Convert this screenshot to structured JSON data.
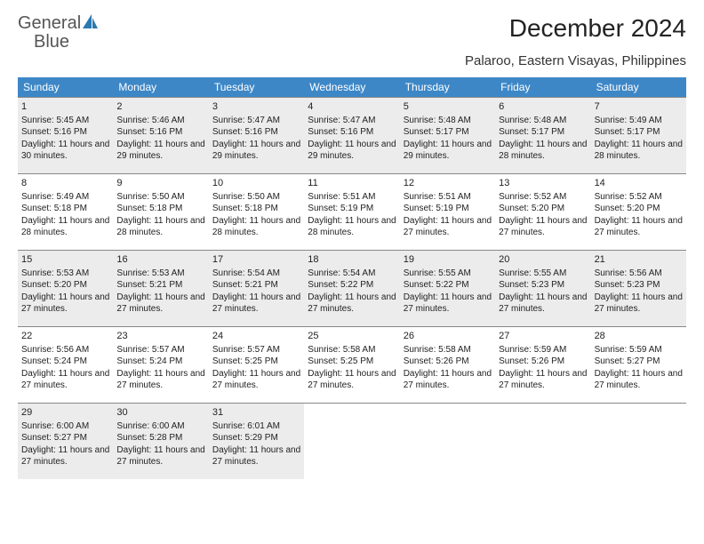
{
  "logo": {
    "text1": "General",
    "text2": "Blue"
  },
  "title": "December 2024",
  "location": "Palaroo, Eastern Visayas, Philippines",
  "colors": {
    "header_bg": "#3d87c7",
    "header_text": "#ffffff",
    "shaded_bg": "#ececec",
    "border": "#888888",
    "text": "#222222",
    "logo_gray": "#555555",
    "logo_blue": "#2a7ab0"
  },
  "day_headers": [
    "Sunday",
    "Monday",
    "Tuesday",
    "Wednesday",
    "Thursday",
    "Friday",
    "Saturday"
  ],
  "days": [
    {
      "n": "1",
      "sr": "5:45 AM",
      "ss": "5:16 PM",
      "dh": "11",
      "dm": "30"
    },
    {
      "n": "2",
      "sr": "5:46 AM",
      "ss": "5:16 PM",
      "dh": "11",
      "dm": "29"
    },
    {
      "n": "3",
      "sr": "5:47 AM",
      "ss": "5:16 PM",
      "dh": "11",
      "dm": "29"
    },
    {
      "n": "4",
      "sr": "5:47 AM",
      "ss": "5:16 PM",
      "dh": "11",
      "dm": "29"
    },
    {
      "n": "5",
      "sr": "5:48 AM",
      "ss": "5:17 PM",
      "dh": "11",
      "dm": "29"
    },
    {
      "n": "6",
      "sr": "5:48 AM",
      "ss": "5:17 PM",
      "dh": "11",
      "dm": "28"
    },
    {
      "n": "7",
      "sr": "5:49 AM",
      "ss": "5:17 PM",
      "dh": "11",
      "dm": "28"
    },
    {
      "n": "8",
      "sr": "5:49 AM",
      "ss": "5:18 PM",
      "dh": "11",
      "dm": "28"
    },
    {
      "n": "9",
      "sr": "5:50 AM",
      "ss": "5:18 PM",
      "dh": "11",
      "dm": "28"
    },
    {
      "n": "10",
      "sr": "5:50 AM",
      "ss": "5:18 PM",
      "dh": "11",
      "dm": "28"
    },
    {
      "n": "11",
      "sr": "5:51 AM",
      "ss": "5:19 PM",
      "dh": "11",
      "dm": "28"
    },
    {
      "n": "12",
      "sr": "5:51 AM",
      "ss": "5:19 PM",
      "dh": "11",
      "dm": "27"
    },
    {
      "n": "13",
      "sr": "5:52 AM",
      "ss": "5:20 PM",
      "dh": "11",
      "dm": "27"
    },
    {
      "n": "14",
      "sr": "5:52 AM",
      "ss": "5:20 PM",
      "dh": "11",
      "dm": "27"
    },
    {
      "n": "15",
      "sr": "5:53 AM",
      "ss": "5:20 PM",
      "dh": "11",
      "dm": "27"
    },
    {
      "n": "16",
      "sr": "5:53 AM",
      "ss": "5:21 PM",
      "dh": "11",
      "dm": "27"
    },
    {
      "n": "17",
      "sr": "5:54 AM",
      "ss": "5:21 PM",
      "dh": "11",
      "dm": "27"
    },
    {
      "n": "18",
      "sr": "5:54 AM",
      "ss": "5:22 PM",
      "dh": "11",
      "dm": "27"
    },
    {
      "n": "19",
      "sr": "5:55 AM",
      "ss": "5:22 PM",
      "dh": "11",
      "dm": "27"
    },
    {
      "n": "20",
      "sr": "5:55 AM",
      "ss": "5:23 PM",
      "dh": "11",
      "dm": "27"
    },
    {
      "n": "21",
      "sr": "5:56 AM",
      "ss": "5:23 PM",
      "dh": "11",
      "dm": "27"
    },
    {
      "n": "22",
      "sr": "5:56 AM",
      "ss": "5:24 PM",
      "dh": "11",
      "dm": "27"
    },
    {
      "n": "23",
      "sr": "5:57 AM",
      "ss": "5:24 PM",
      "dh": "11",
      "dm": "27"
    },
    {
      "n": "24",
      "sr": "5:57 AM",
      "ss": "5:25 PM",
      "dh": "11",
      "dm": "27"
    },
    {
      "n": "25",
      "sr": "5:58 AM",
      "ss": "5:25 PM",
      "dh": "11",
      "dm": "27"
    },
    {
      "n": "26",
      "sr": "5:58 AM",
      "ss": "5:26 PM",
      "dh": "11",
      "dm": "27"
    },
    {
      "n": "27",
      "sr": "5:59 AM",
      "ss": "5:26 PM",
      "dh": "11",
      "dm": "27"
    },
    {
      "n": "28",
      "sr": "5:59 AM",
      "ss": "5:27 PM",
      "dh": "11",
      "dm": "27"
    },
    {
      "n": "29",
      "sr": "6:00 AM",
      "ss": "5:27 PM",
      "dh": "11",
      "dm": "27"
    },
    {
      "n": "30",
      "sr": "6:00 AM",
      "ss": "5:28 PM",
      "dh": "11",
      "dm": "27"
    },
    {
      "n": "31",
      "sr": "6:01 AM",
      "ss": "5:29 PM",
      "dh": "11",
      "dm": "27"
    }
  ],
  "labels": {
    "sunrise": "Sunrise:",
    "sunset": "Sunset:",
    "daylight_prefix": "Daylight:",
    "hours_word": "hours",
    "and_word": "and",
    "minutes_word": "minutes."
  },
  "layout": {
    "weeks": 5,
    "first_weekday_offset": 0,
    "shaded_rows": [
      0,
      2,
      4
    ]
  }
}
